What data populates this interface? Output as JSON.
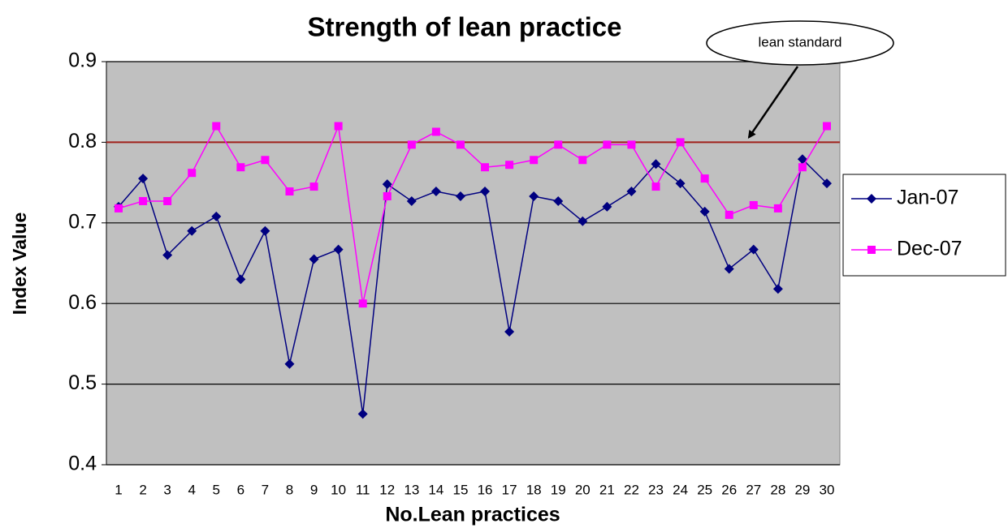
{
  "chart_data": {
    "type": "line",
    "title": "Strength of lean practice",
    "x_label": "No.Lean practices",
    "y_label": "Index Value",
    "categories": [
      1,
      2,
      3,
      4,
      5,
      6,
      7,
      8,
      9,
      10,
      11,
      12,
      13,
      14,
      15,
      16,
      17,
      18,
      19,
      20,
      21,
      22,
      23,
      24,
      25,
      26,
      27,
      28,
      29,
      30
    ],
    "series": [
      {
        "name": "Jan-07",
        "color": "#000080",
        "marker": "diamond",
        "values": [
          0.72,
          0.755,
          0.66,
          0.69,
          0.708,
          0.63,
          0.69,
          0.525,
          0.655,
          0.667,
          0.463,
          0.748,
          0.727,
          0.739,
          0.733,
          0.739,
          0.565,
          0.733,
          0.727,
          0.702,
          0.72,
          0.739,
          0.773,
          0.749,
          0.714,
          0.643,
          0.667,
          0.618,
          0.779,
          0.749
        ]
      },
      {
        "name": "Dec-07",
        "color": "#ff00ff",
        "marker": "square",
        "values": [
          0.718,
          0.727,
          0.727,
          0.762,
          0.82,
          0.769,
          0.778,
          0.739,
          0.745,
          0.82,
          0.6,
          0.733,
          0.797,
          0.813,
          0.797,
          0.769,
          0.772,
          0.778,
          0.797,
          0.778,
          0.797,
          0.797,
          0.745,
          0.8,
          0.755,
          0.71,
          0.722,
          0.718,
          0.769,
          0.82
        ]
      }
    ],
    "reference_line": {
      "value": 0.8,
      "label": "lean standard",
      "color": "#a0201a"
    },
    "ylim": [
      0.4,
      0.9
    ],
    "yticks": [
      0.4,
      0.5,
      0.6,
      0.7,
      0.8,
      0.9
    ],
    "grid": true,
    "legend": "right",
    "plot_background": "#c0c0c0"
  }
}
